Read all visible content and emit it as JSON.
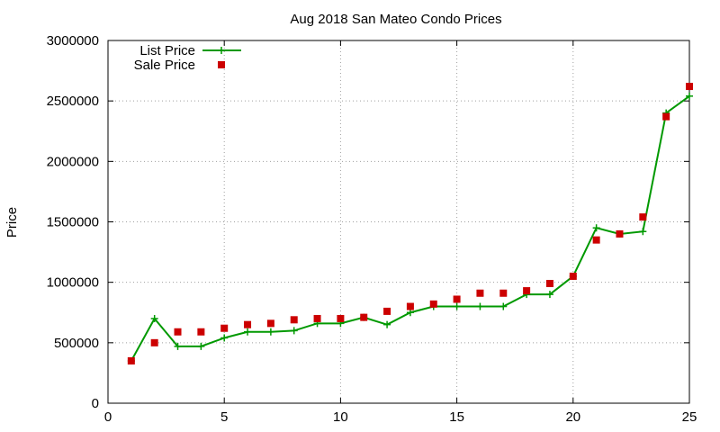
{
  "chart_data": {
    "type": "line",
    "title": "Aug 2018 San Mateo Condo Prices",
    "xlabel": "",
    "ylabel": "Price",
    "xlim": [
      0,
      25
    ],
    "ylim": [
      0,
      3000000
    ],
    "xticks": [
      0,
      5,
      10,
      15,
      20,
      25
    ],
    "yticks": [
      0,
      500000,
      1000000,
      1500000,
      2000000,
      2500000,
      3000000
    ],
    "grid": true,
    "legend_position": "top-left",
    "x": [
      1,
      2,
      3,
      4,
      5,
      6,
      7,
      8,
      9,
      10,
      11,
      12,
      13,
      14,
      15,
      16,
      17,
      18,
      19,
      20,
      21,
      22,
      23,
      24,
      25
    ],
    "series": [
      {
        "name": "List Price",
        "style": "line-plus",
        "color": "#009900",
        "values": [
          350000,
          700000,
          470000,
          470000,
          540000,
          590000,
          590000,
          600000,
          660000,
          660000,
          710000,
          650000,
          750000,
          800000,
          800000,
          800000,
          800000,
          900000,
          900000,
          1050000,
          1450000,
          1400000,
          1420000,
          2400000,
          2540000
        ]
      },
      {
        "name": "Sale Price",
        "style": "square-points",
        "color": "#cc0000",
        "values": [
          350000,
          500000,
          590000,
          590000,
          620000,
          650000,
          660000,
          690000,
          700000,
          700000,
          710000,
          760000,
          800000,
          820000,
          860000,
          910000,
          910000,
          930000,
          990000,
          1050000,
          1350000,
          1400000,
          1540000,
          2370000,
          2620000
        ]
      }
    ]
  }
}
